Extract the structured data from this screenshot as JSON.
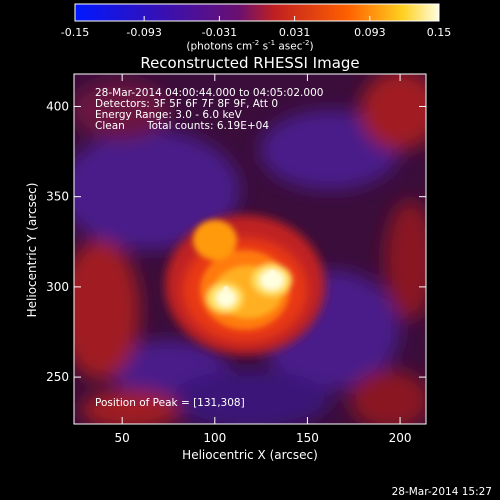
{
  "chart_data": {
    "type": "heatmap",
    "title": "Reconstructed RHESSI Image",
    "xlabel": "Heliocentric X (arcsec)",
    "ylabel": "Heliocentric Y (arcsec)",
    "xlim": [
      24,
      214
    ],
    "ylim": [
      224,
      418
    ],
    "xticks": [
      50,
      100,
      150,
      200
    ],
    "yticks": [
      250,
      300,
      350,
      400
    ],
    "colorbar": {
      "range": [
        -0.15,
        0.15
      ],
      "ticks": [
        "-0.15",
        "-0.093",
        "-0.031",
        "0.031",
        "0.093",
        "0.15"
      ],
      "unit_prefix": "(photons cm",
      "unit_exp1": "-2",
      "unit_mid": " s",
      "unit_exp2": "-1",
      "unit_suffix": " asec",
      "unit_exp3": "-2",
      "unit_close": ")"
    },
    "sources": [
      {
        "x": 131,
        "y": 308,
        "peak": 0.15
      },
      {
        "x": 106,
        "y": 299,
        "peak": 0.14
      }
    ],
    "colors": {
      "negative": "#2a0d44",
      "zero": "#8b1f2c",
      "positive": "#ffffe0"
    }
  },
  "annotations": {
    "time": "28-Mar-2014 04:00:44.000 to 04:05:02.000",
    "detectors": "Detectors: 3F 5F 6F 7F 8F 9F, Att 0",
    "energy": "Energy Range: 3.0 - 6.0 keV",
    "method": "Clean",
    "counts": "Total counts: 6.19E+04",
    "peak": "Position of Peak = [131,308]"
  },
  "footer": "28-Mar-2014 15:27"
}
